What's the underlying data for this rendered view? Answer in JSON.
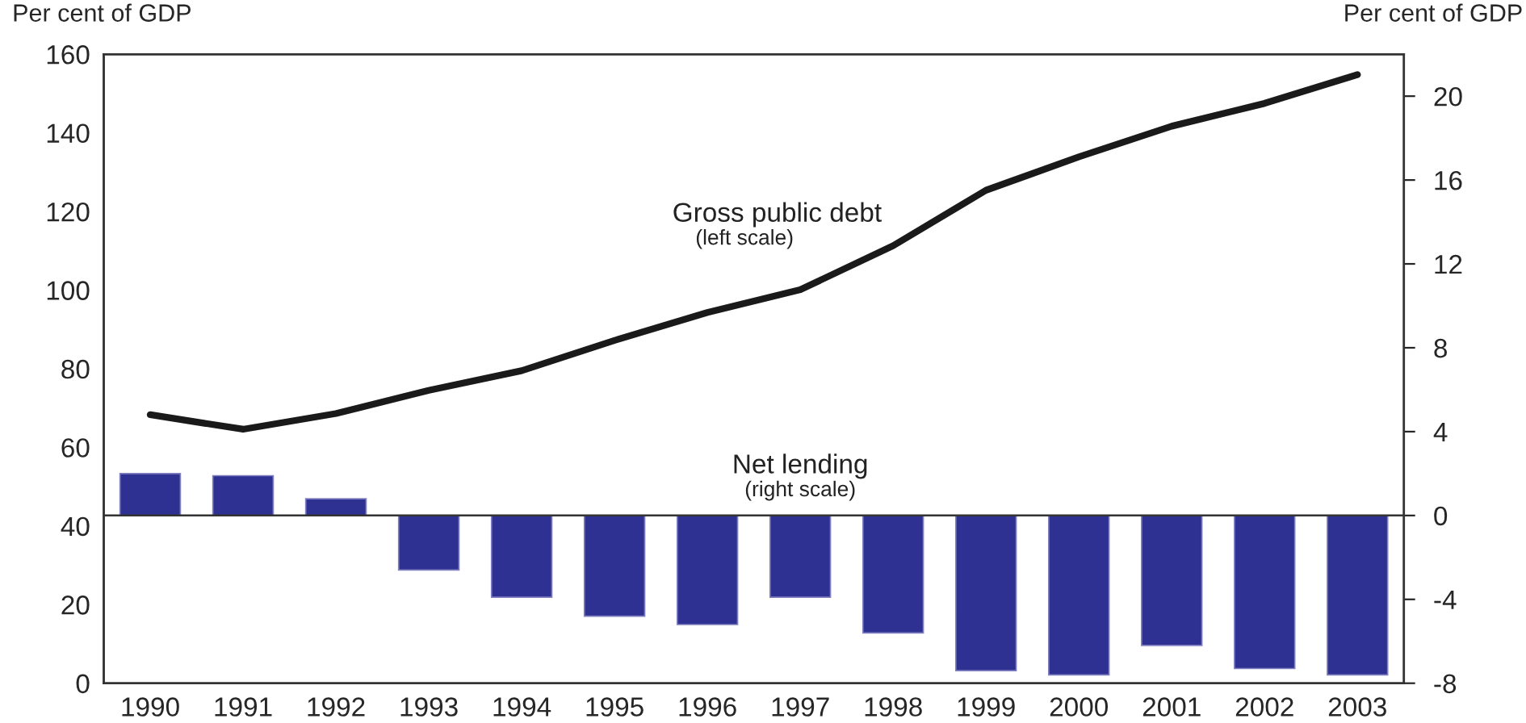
{
  "chart_data": {
    "type": "bar",
    "categories": [
      "1990",
      "1991",
      "1992",
      "1993",
      "1994",
      "1995",
      "1996",
      "1997",
      "1998",
      "1999",
      "2000",
      "2001",
      "2002",
      "2003"
    ],
    "series": [
      {
        "name": "Gross public debt",
        "type": "line",
        "axis": "y",
        "color": "#1a1a1a",
        "values": [
          68.3,
          64.6,
          68.6,
          74.5,
          79.5,
          87.2,
          94.3,
          100.1,
          111.3,
          125.4,
          133.9,
          141.7,
          147.5,
          154.8
        ]
      },
      {
        "name": "Net lending",
        "axis": "y2",
        "color": "#2e3192",
        "values": [
          2.0,
          1.9,
          0.8,
          -2.6,
          -3.9,
          -4.8,
          -5.2,
          -3.9,
          -5.6,
          -7.4,
          -7.6,
          -6.2,
          -7.3,
          -7.6
        ]
      }
    ],
    "annotations": [
      "(left scale)",
      "(right scale)"
    ],
    "ylabel": "Per cent of GDP",
    "y2label": "Per cent of GDP",
    "ylim": [
      0,
      160
    ],
    "yticks": [
      0,
      20,
      40,
      60,
      80,
      100,
      120,
      140,
      160
    ],
    "y2lim": [
      -8,
      22
    ],
    "y2ticks": [
      -8,
      -4,
      0,
      4,
      8,
      12,
      16,
      20
    ],
    "ref_lines": [
      {
        "axis": "y2",
        "value": 0,
        "color": "#333333"
      }
    ],
    "grid": false,
    "legend": false,
    "line_style": "solid",
    "marker": "none"
  }
}
